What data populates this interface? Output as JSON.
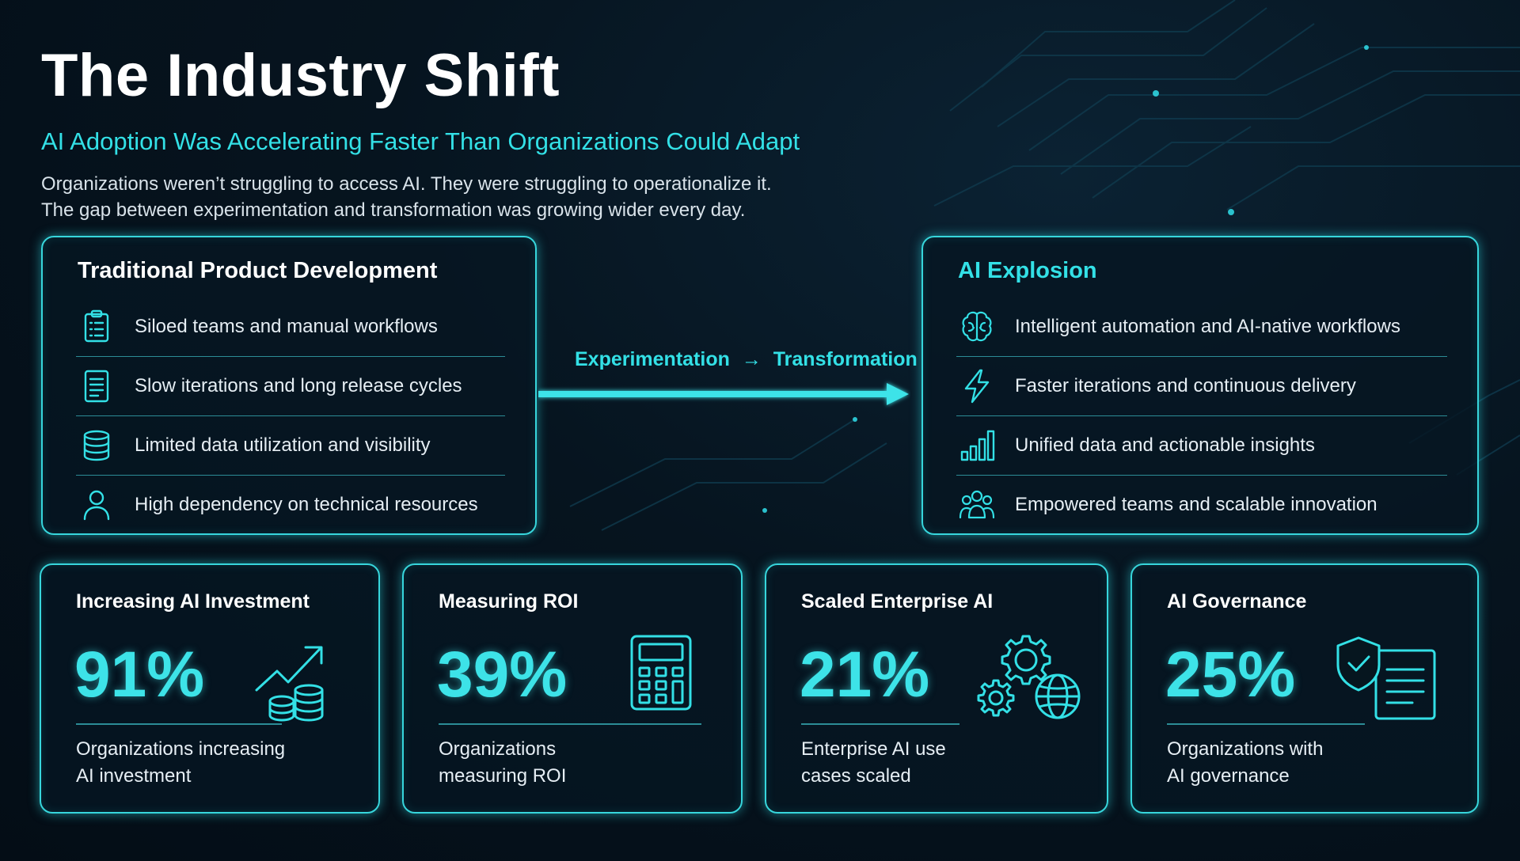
{
  "header": {
    "title": "The Industry Shift",
    "subtitle": "AI Adoption Was Accelerating Faster Than Organizations Could Adapt",
    "description_line1": "Organizations weren’t struggling to access AI. They were struggling to operationalize it.",
    "description_line2": "The gap between experimentation and transformation was growing wider every day."
  },
  "traditional": {
    "title": "Traditional Product Development",
    "items": [
      {
        "label": "Siloed teams and manual workflows",
        "icon": "clipboard-icon"
      },
      {
        "label": "Slow iterations and long release cycles",
        "icon": "document-icon"
      },
      {
        "label": "Limited data utilization and visibility",
        "icon": "database-icon"
      },
      {
        "label": "High dependency on technical resources",
        "icon": "user-icon"
      }
    ]
  },
  "connector": {
    "from": "Experimentation",
    "arrow": "→",
    "to": "Transformation"
  },
  "ai_explosion": {
    "title": "AI Explosion",
    "items": [
      {
        "label": "Intelligent automation and AI-native workflows",
        "icon": "brain-icon"
      },
      {
        "label": "Faster iterations and continuous delivery",
        "icon": "lightning-icon"
      },
      {
        "label": "Unified data and actionable insights",
        "icon": "bar-chart-icon"
      },
      {
        "label": "Empowered teams and scalable innovation",
        "icon": "team-icon"
      }
    ]
  },
  "stats": [
    {
      "title": "Increasing AI Investment",
      "value": "91%",
      "label_line1": "Organizations increasing",
      "label_line2": "AI investment",
      "icon": "growth-coins-icon"
    },
    {
      "title": "Measuring ROI",
      "value": "39%",
      "label_line1": "Organizations",
      "label_line2": "measuring ROI",
      "icon": "calculator-icon"
    },
    {
      "title": "Scaled Enterprise AI",
      "value": "21%",
      "label_line1": "Enterprise AI use",
      "label_line2": "cases scaled",
      "icon": "gears-globe-icon"
    },
    {
      "title": "AI Governance",
      "value": "25%",
      "label_line1": "Organizations with",
      "label_line2": "AI governance",
      "icon": "shield-document-icon"
    }
  ],
  "colors": {
    "accent": "#33e0e6",
    "border": "#37d6dc",
    "background": "#06141f",
    "divider": "#2c8c96"
  }
}
